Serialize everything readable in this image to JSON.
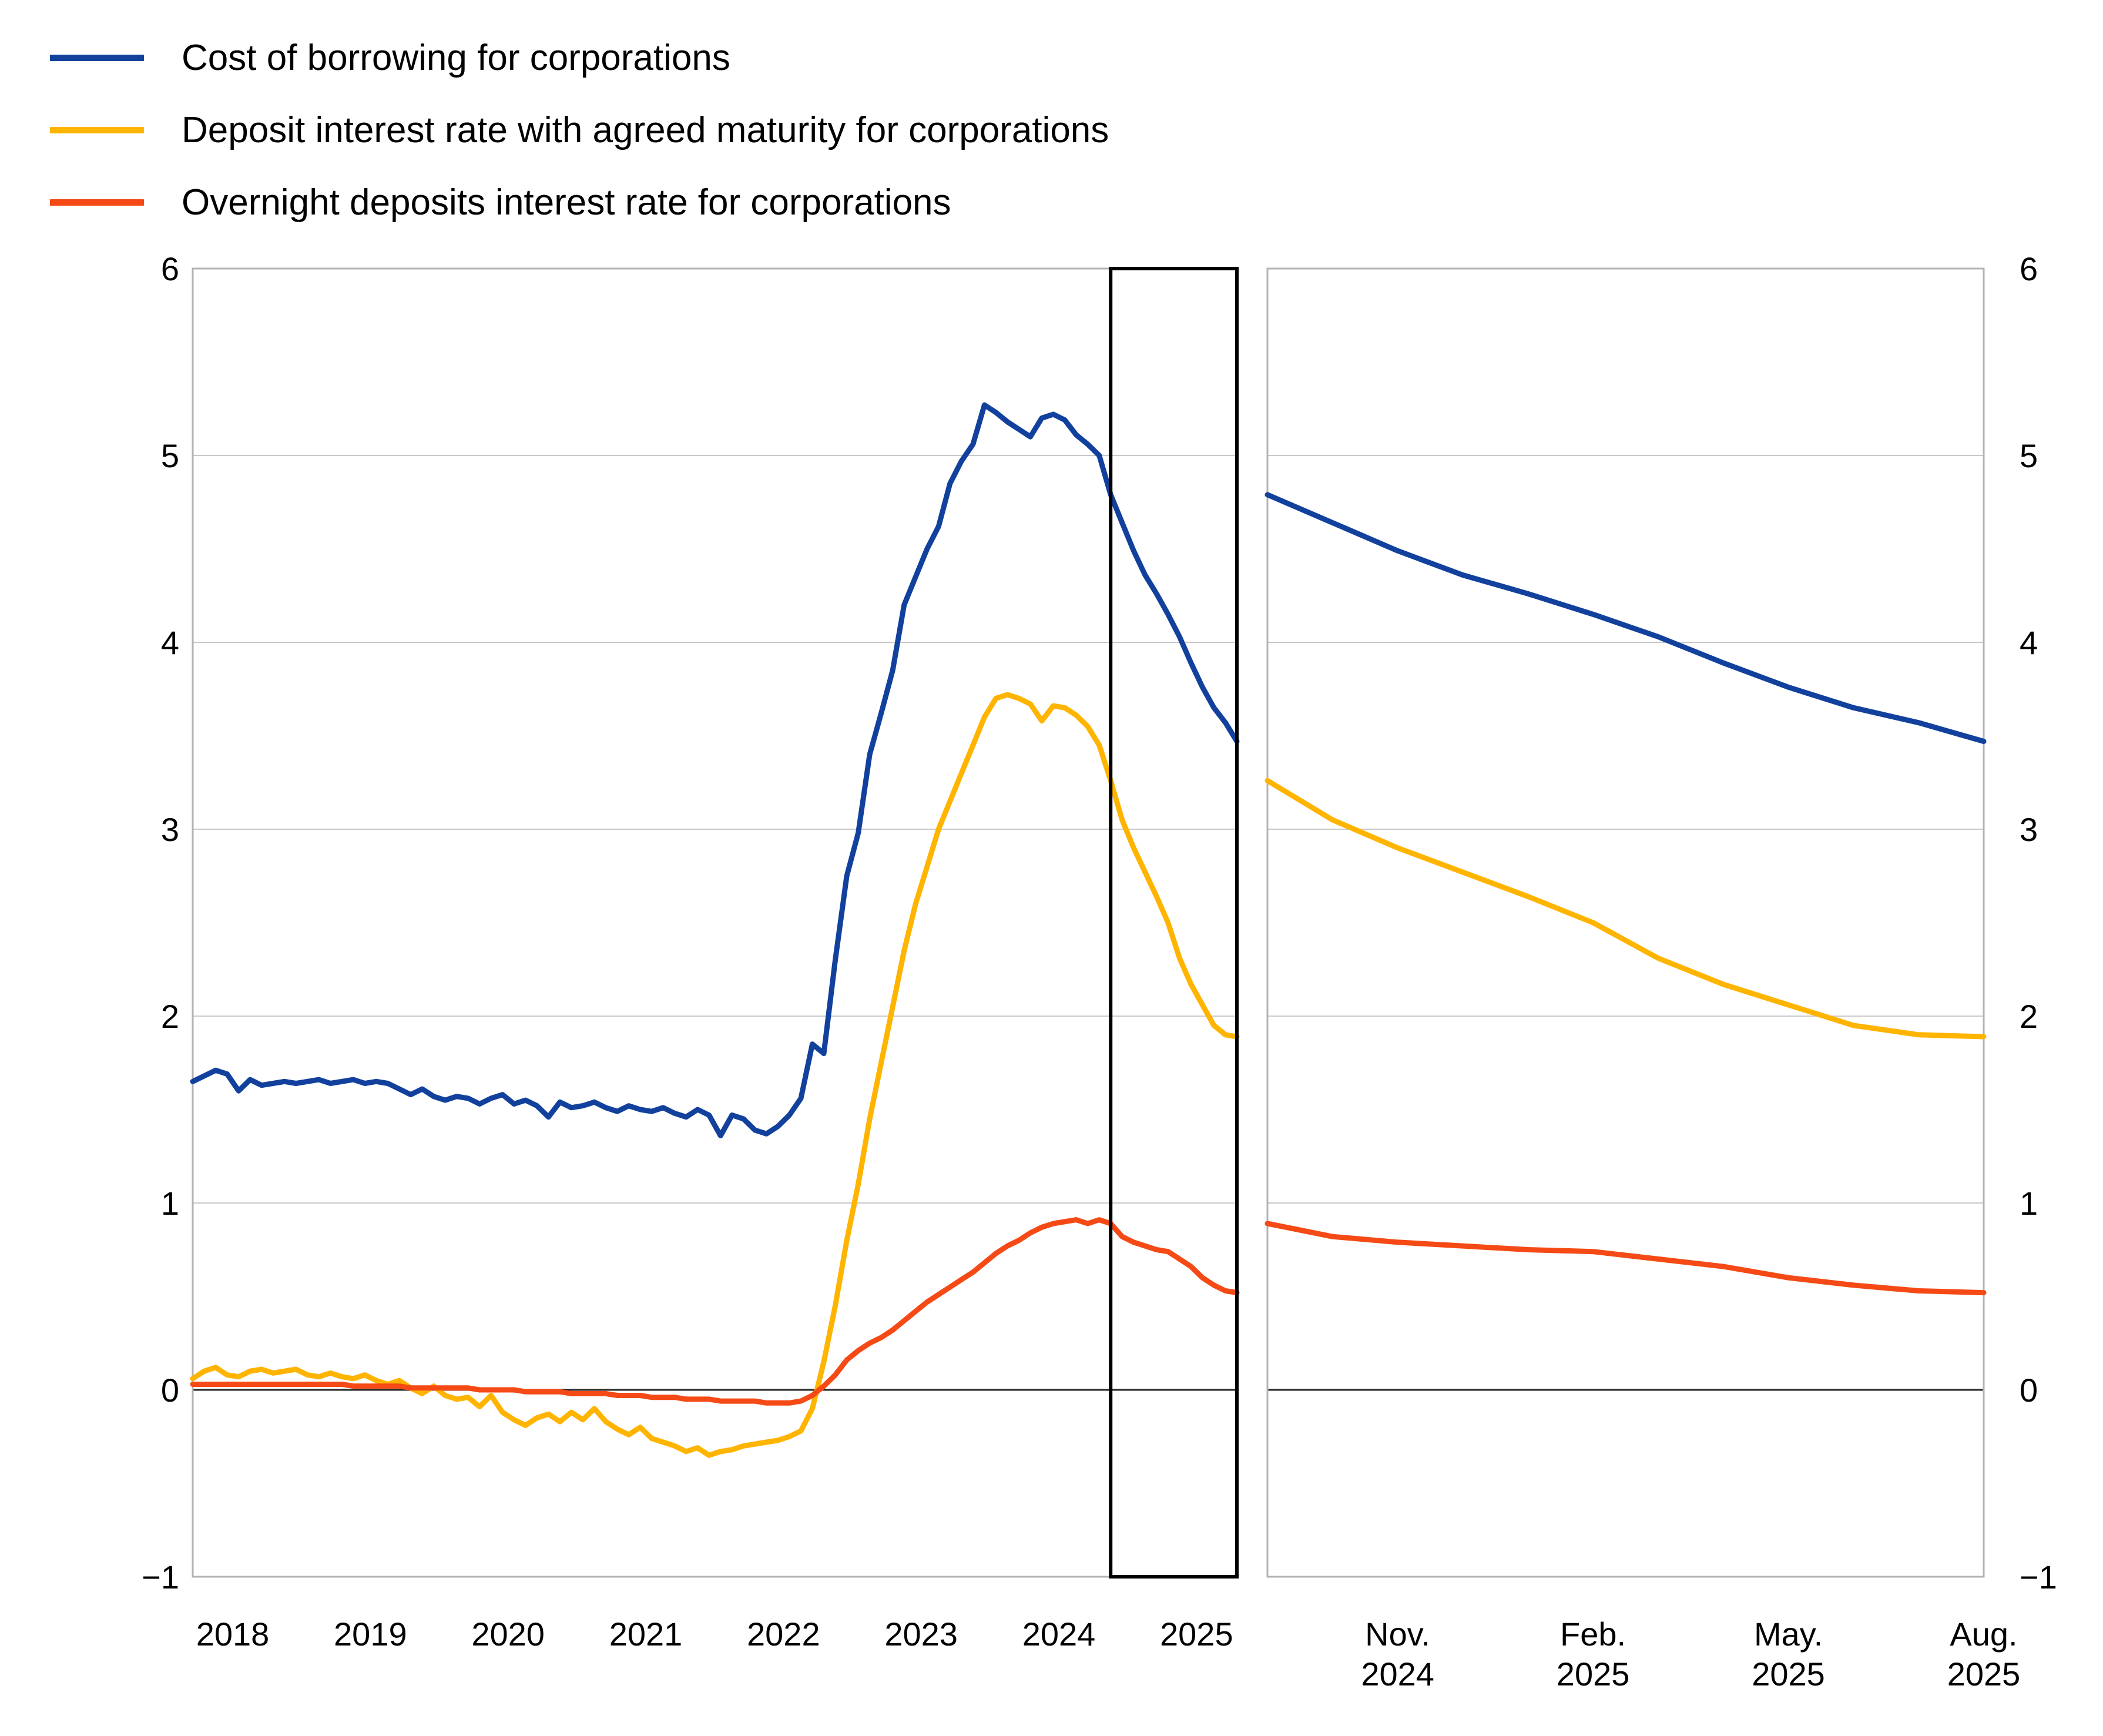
{
  "legend": {
    "items": [
      {
        "label": "Cost of borrowing for corporations",
        "color": "#12419d"
      },
      {
        "label": "Deposit interest rate with agreed maturity for corporations",
        "color": "#ffb400"
      },
      {
        "label": "Overnight deposits interest rate for corporations",
        "color": "#f54a15"
      }
    ]
  },
  "style": {
    "background": "#ffffff",
    "text_color": "#000000",
    "grid_color": "#c9c9c9",
    "zero_line_color": "#262626",
    "panel_border_color": "#b3b3b3",
    "highlight_box_color": "#000000"
  },
  "chart_data": {
    "type": "line",
    "y_axis": {
      "min": -1,
      "max": 6,
      "tick_step": 1,
      "tick_labels": [
        "6",
        "5",
        "4",
        "3",
        "2",
        "1",
        "0",
        "−1"
      ],
      "labels_on_both_sides": true,
      "grid": true
    },
    "left_panel": {
      "x_start": "2018-01",
      "x_end": "2025-08",
      "frequency": "monthly",
      "x_tick_labels": [
        "2018",
        "2019",
        "2020",
        "2021",
        "2022",
        "2023",
        "2024",
        "2025"
      ],
      "highlight_window": {
        "start": "2024-09",
        "end": "2025-08"
      },
      "series": [
        {
          "name": "Cost of borrowing for corporations",
          "color": "#12419d",
          "values": [
            1.65,
            1.68,
            1.71,
            1.69,
            1.6,
            1.66,
            1.63,
            1.64,
            1.65,
            1.64,
            1.65,
            1.66,
            1.64,
            1.65,
            1.66,
            1.64,
            1.65,
            1.64,
            1.61,
            1.58,
            1.61,
            1.57,
            1.55,
            1.57,
            1.56,
            1.53,
            1.56,
            1.58,
            1.53,
            1.55,
            1.52,
            1.46,
            1.54,
            1.51,
            1.52,
            1.54,
            1.51,
            1.49,
            1.52,
            1.5,
            1.49,
            1.51,
            1.48,
            1.46,
            1.5,
            1.47,
            1.36,
            1.47,
            1.45,
            1.39,
            1.37,
            1.41,
            1.47,
            1.56,
            1.85,
            1.8,
            2.3,
            2.75,
            2.98,
            3.4,
            3.62,
            3.85,
            4.2,
            4.35,
            4.5,
            4.62,
            4.85,
            4.97,
            5.06,
            5.27,
            5.23,
            5.18,
            5.14,
            5.1,
            5.2,
            5.22,
            5.19,
            5.11,
            5.06,
            5.0,
            4.79,
            4.64,
            4.49,
            4.36,
            4.26,
            4.15,
            4.03,
            3.89,
            3.76,
            3.65,
            3.57,
            3.47
          ]
        },
        {
          "name": "Deposit interest rate with agreed maturity for corporations",
          "color": "#ffb400",
          "values": [
            0.06,
            0.1,
            0.12,
            0.08,
            0.07,
            0.1,
            0.11,
            0.09,
            0.1,
            0.11,
            0.08,
            0.07,
            0.09,
            0.07,
            0.06,
            0.08,
            0.05,
            0.03,
            0.05,
            0.01,
            -0.02,
            0.02,
            -0.03,
            -0.05,
            -0.04,
            -0.09,
            -0.03,
            -0.12,
            -0.16,
            -0.19,
            -0.15,
            -0.13,
            -0.17,
            -0.12,
            -0.16,
            -0.1,
            -0.17,
            -0.21,
            -0.24,
            -0.2,
            -0.26,
            -0.28,
            -0.3,
            -0.33,
            -0.31,
            -0.35,
            -0.33,
            -0.32,
            -0.3,
            -0.29,
            -0.28,
            -0.27,
            -0.25,
            -0.22,
            -0.1,
            0.15,
            0.45,
            0.8,
            1.1,
            1.45,
            1.75,
            2.05,
            2.35,
            2.6,
            2.8,
            3.0,
            3.15,
            3.3,
            3.45,
            3.6,
            3.7,
            3.72,
            3.7,
            3.67,
            3.58,
            3.66,
            3.65,
            3.61,
            3.55,
            3.45,
            3.26,
            3.05,
            2.9,
            2.77,
            2.64,
            2.5,
            2.31,
            2.17,
            2.06,
            1.95,
            1.9,
            1.89
          ]
        },
        {
          "name": "Overnight deposits interest rate for corporations",
          "color": "#f54a15",
          "values": [
            0.03,
            0.03,
            0.03,
            0.03,
            0.03,
            0.03,
            0.03,
            0.03,
            0.03,
            0.03,
            0.03,
            0.03,
            0.03,
            0.03,
            0.02,
            0.02,
            0.02,
            0.02,
            0.02,
            0.01,
            0.01,
            0.01,
            0.01,
            0.01,
            0.01,
            0.0,
            0.0,
            0.0,
            0.0,
            -0.01,
            -0.01,
            -0.01,
            -0.01,
            -0.02,
            -0.02,
            -0.02,
            -0.02,
            -0.03,
            -0.03,
            -0.03,
            -0.04,
            -0.04,
            -0.04,
            -0.05,
            -0.05,
            -0.05,
            -0.06,
            -0.06,
            -0.06,
            -0.06,
            -0.07,
            -0.07,
            -0.07,
            -0.06,
            -0.03,
            0.02,
            0.08,
            0.16,
            0.21,
            0.25,
            0.28,
            0.32,
            0.37,
            0.42,
            0.47,
            0.51,
            0.55,
            0.59,
            0.63,
            0.68,
            0.73,
            0.77,
            0.8,
            0.84,
            0.87,
            0.89,
            0.9,
            0.91,
            0.89,
            0.91,
            0.89,
            0.82,
            0.79,
            0.77,
            0.75,
            0.74,
            0.7,
            0.66,
            0.6,
            0.56,
            0.53,
            0.52
          ]
        }
      ]
    },
    "right_panel": {
      "x_start": "2024-09",
      "x_end": "2025-08",
      "frequency": "monthly",
      "x_tick_labels": [
        [
          "Nov.",
          "2024"
        ],
        [
          "Feb.",
          "2025"
        ],
        [
          "May.",
          "2025"
        ],
        [
          "Aug.",
          "2025"
        ]
      ],
      "x_tick_month_index": [
        2,
        5,
        8,
        11
      ],
      "series": [
        {
          "name": "Cost of borrowing for corporations",
          "color": "#12419d",
          "values": [
            4.79,
            4.64,
            4.49,
            4.36,
            4.26,
            4.15,
            4.03,
            3.89,
            3.76,
            3.65,
            3.57,
            3.47
          ]
        },
        {
          "name": "Deposit interest rate with agreed maturity for corporations",
          "color": "#ffb400",
          "values": [
            3.26,
            3.05,
            2.9,
            2.77,
            2.64,
            2.5,
            2.31,
            2.17,
            2.06,
            1.95,
            1.9,
            1.89
          ]
        },
        {
          "name": "Overnight deposits interest rate for corporations",
          "color": "#f54a15",
          "values": [
            0.89,
            0.82,
            0.79,
            0.77,
            0.75,
            0.74,
            0.7,
            0.66,
            0.6,
            0.56,
            0.53,
            0.52
          ]
        }
      ]
    },
    "legend_position": "top-left"
  }
}
